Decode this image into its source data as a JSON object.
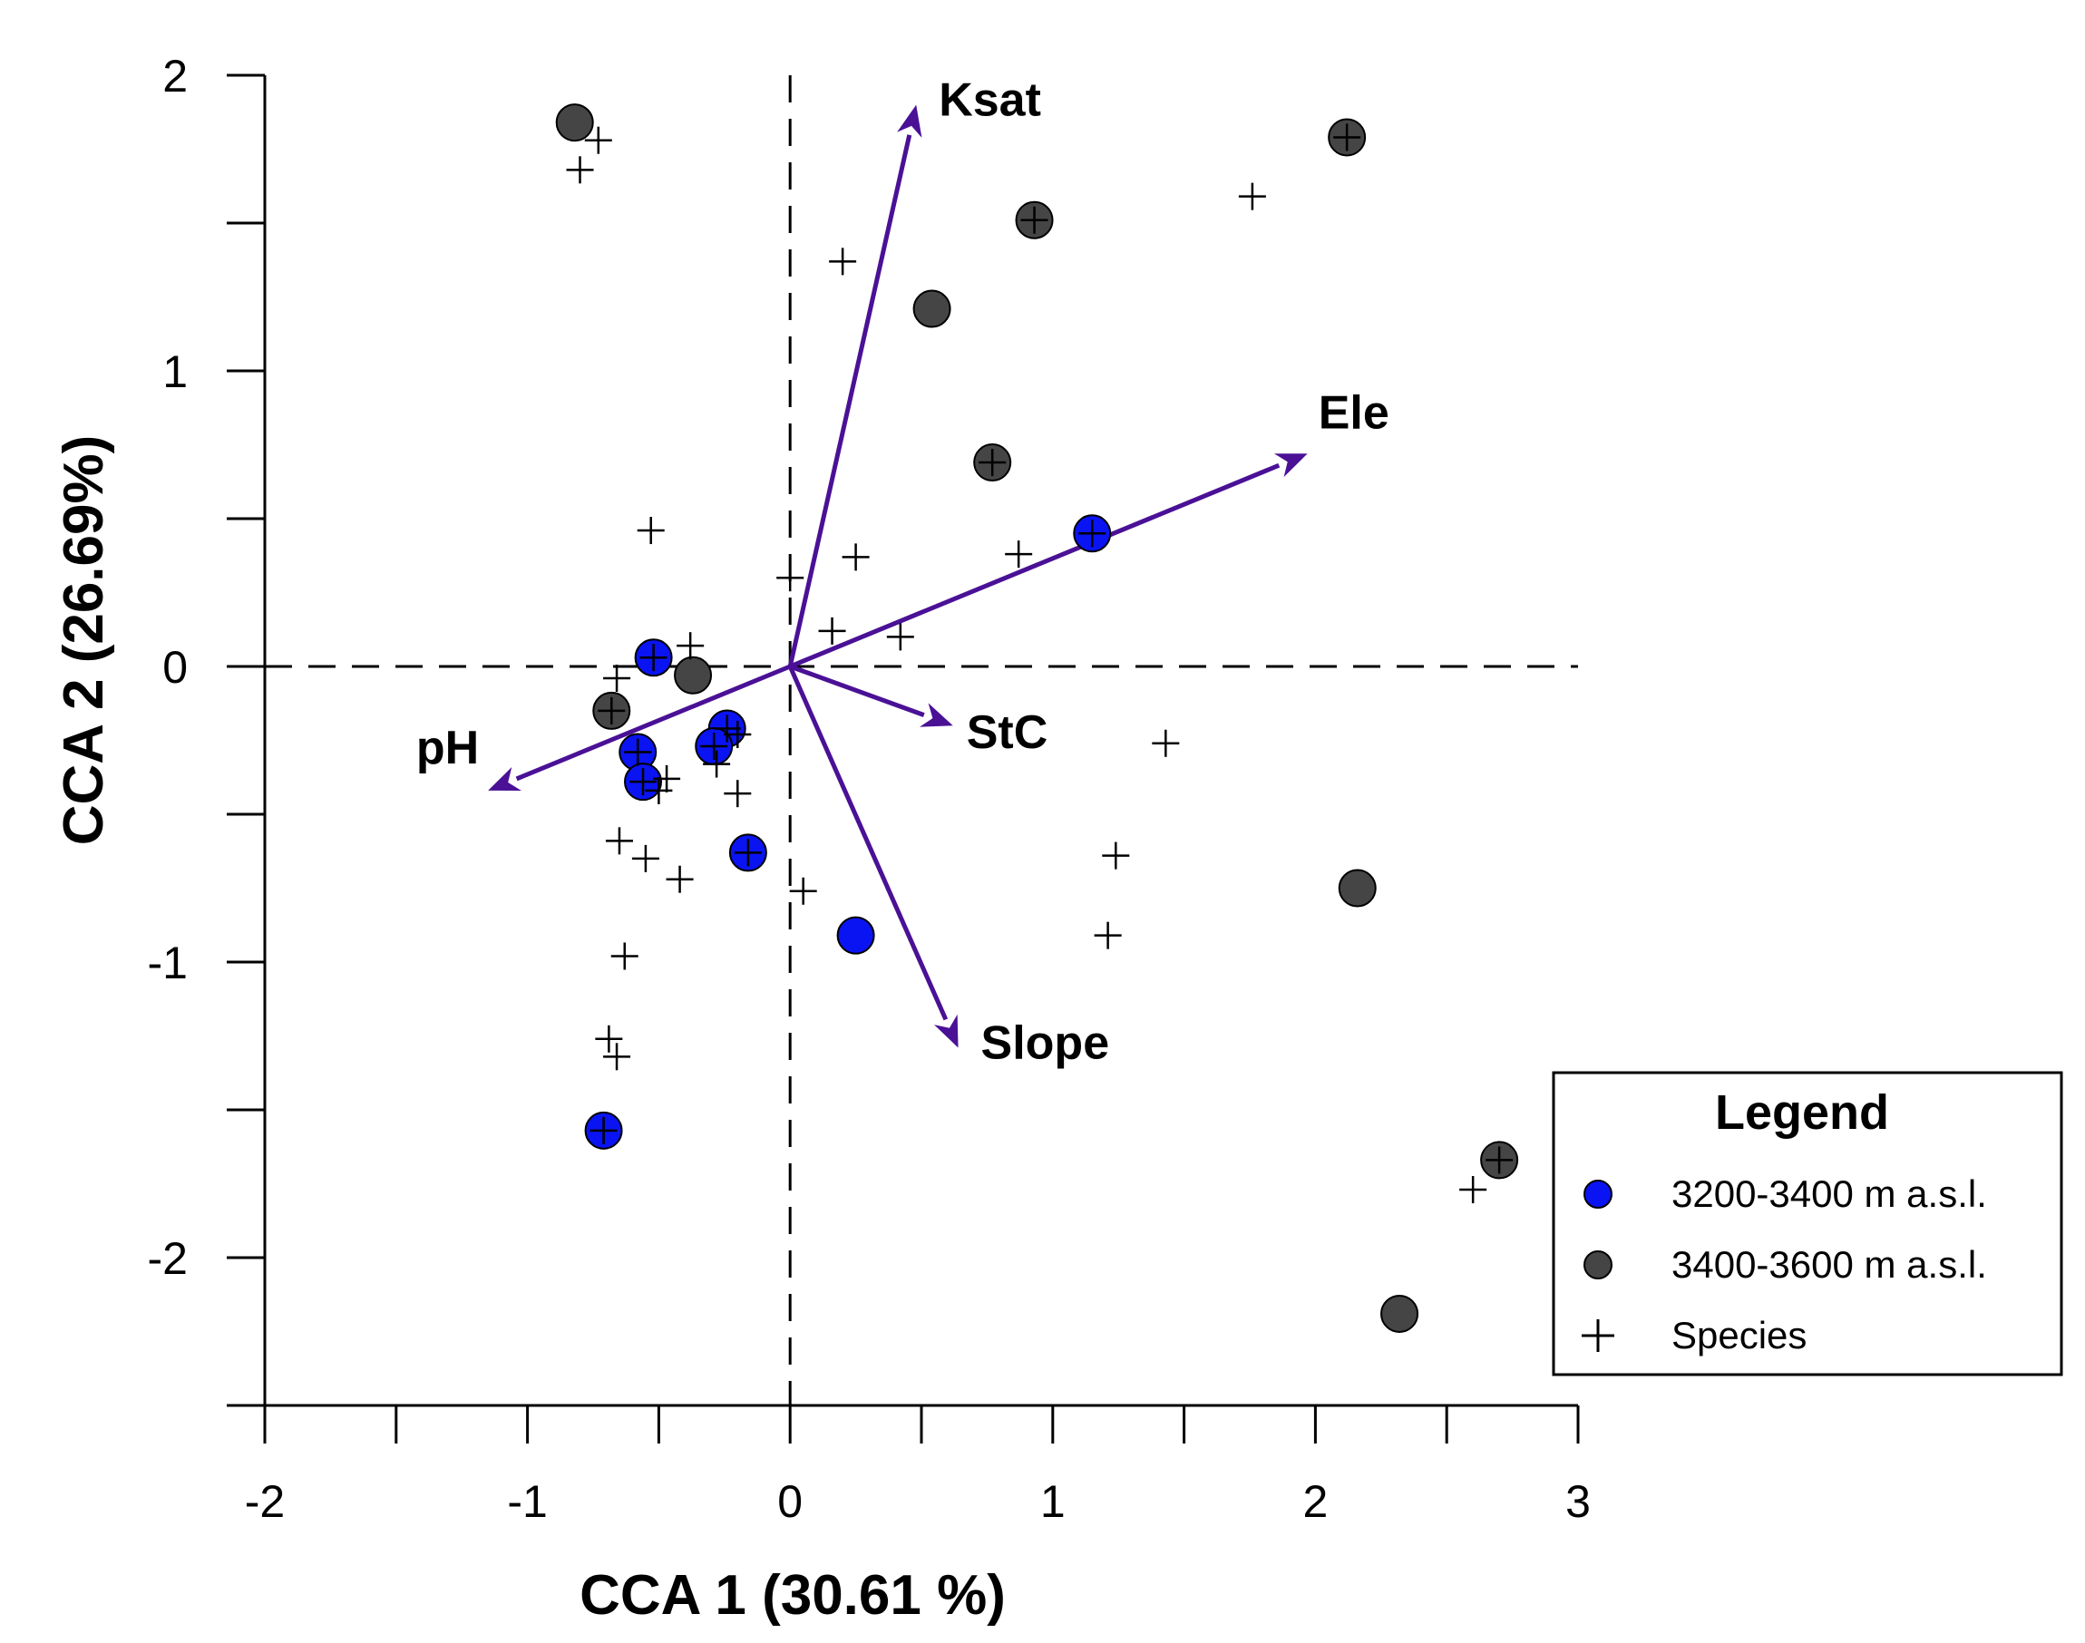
{
  "chart_data": {
    "type": "scatter",
    "title": "",
    "xlabel": "CCA 1 (30.61 %)",
    "ylabel": "CCA 2 (26.69%)",
    "xlim": [
      -2,
      3
    ],
    "ylim": [
      -2.5,
      2
    ],
    "x_ticks": [
      "-2",
      "-1",
      "0",
      "1",
      "2",
      "3"
    ],
    "y_ticks": [
      "2",
      "1",
      "0",
      "-1",
      "-2"
    ],
    "x_tick_values": [
      -2,
      -1,
      0,
      1,
      2,
      3
    ],
    "y_tick_values": [
      2,
      1,
      0,
      -1,
      -2
    ],
    "x_minor_ticks": [
      -1.5,
      -0.5,
      0.5,
      1.5,
      2.5
    ],
    "y_minor_ticks": [
      1.5,
      0.5,
      -0.5,
      -1.5,
      -2.5
    ],
    "reference_lines": {
      "x": 0,
      "y": 0,
      "style": "dashed"
    },
    "colors": {
      "site_low": "#0a14f2",
      "site_high": "#454545",
      "species": "#000000",
      "arrows": "#4a1196"
    },
    "series": [
      {
        "name": "3200-3400 m a.s.l.",
        "marker": "circle",
        "points": [
          {
            "x": 1.15,
            "y": 0.45
          },
          {
            "x": -0.52,
            "y": 0.03
          },
          {
            "x": -0.24,
            "y": -0.21
          },
          {
            "x": -0.29,
            "y": -0.27
          },
          {
            "x": -0.58,
            "y": -0.29
          },
          {
            "x": -0.56,
            "y": -0.39
          },
          {
            "x": -0.16,
            "y": -0.63
          },
          {
            "x": 0.25,
            "y": -0.91
          },
          {
            "x": -0.71,
            "y": -1.57
          }
        ]
      },
      {
        "name": "3400-3600 m a.s.l.",
        "marker": "circle",
        "points": [
          {
            "x": -0.82,
            "y": 1.84
          },
          {
            "x": 2.12,
            "y": 1.79
          },
          {
            "x": 0.93,
            "y": 1.51
          },
          {
            "x": 0.54,
            "y": 1.21
          },
          {
            "x": 0.77,
            "y": 0.69
          },
          {
            "x": -0.37,
            "y": -0.03
          },
          {
            "x": -0.68,
            "y": -0.15
          },
          {
            "x": 2.16,
            "y": -0.75
          },
          {
            "x": 2.7,
            "y": -1.67
          },
          {
            "x": 2.32,
            "y": -2.19
          }
        ]
      },
      {
        "name": "Species",
        "marker": "plus",
        "points": [
          {
            "x": -0.73,
            "y": 1.78
          },
          {
            "x": -0.8,
            "y": 1.68
          },
          {
            "x": 2.12,
            "y": 1.79
          },
          {
            "x": 1.76,
            "y": 1.59
          },
          {
            "x": 0.93,
            "y": 1.51
          },
          {
            "x": 0.2,
            "y": 1.37
          },
          {
            "x": 0.77,
            "y": 0.69
          },
          {
            "x": -0.53,
            "y": 0.46
          },
          {
            "x": 0.87,
            "y": 0.38
          },
          {
            "x": 0.25,
            "y": 0.37
          },
          {
            "x": 1.15,
            "y": 0.45
          },
          {
            "x": 0.0,
            "y": 0.3
          },
          {
            "x": 0.16,
            "y": 0.12
          },
          {
            "x": 0.42,
            "y": 0.1
          },
          {
            "x": -0.38,
            "y": 0.07
          },
          {
            "x": -0.52,
            "y": 0.03
          },
          {
            "x": -0.66,
            "y": -0.04
          },
          {
            "x": -0.68,
            "y": -0.15
          },
          {
            "x": -0.24,
            "y": -0.21
          },
          {
            "x": -0.2,
            "y": -0.23
          },
          {
            "x": -0.29,
            "y": -0.27
          },
          {
            "x": 1.43,
            "y": -0.26
          },
          {
            "x": -0.58,
            "y": -0.29
          },
          {
            "x": -0.28,
            "y": -0.33
          },
          {
            "x": -0.56,
            "y": -0.39
          },
          {
            "x": -0.47,
            "y": -0.38
          },
          {
            "x": -0.5,
            "y": -0.42
          },
          {
            "x": -0.2,
            "y": -0.43
          },
          {
            "x": -0.65,
            "y": -0.59
          },
          {
            "x": -0.55,
            "y": -0.65
          },
          {
            "x": -0.16,
            "y": -0.63
          },
          {
            "x": 1.24,
            "y": -0.64
          },
          {
            "x": -0.42,
            "y": -0.72
          },
          {
            "x": 0.05,
            "y": -0.76
          },
          {
            "x": 1.21,
            "y": -0.91
          },
          {
            "x": -0.63,
            "y": -0.98
          },
          {
            "x": -0.69,
            "y": -1.26
          },
          {
            "x": -0.66,
            "y": -1.32
          },
          {
            "x": -0.71,
            "y": -1.57
          },
          {
            "x": 2.6,
            "y": -1.77
          },
          {
            "x": 2.7,
            "y": -1.67
          }
        ]
      }
    ],
    "arrows": [
      {
        "label": "Ksat",
        "x": 0.48,
        "y": 1.9
      },
      {
        "label": "Ele",
        "x": 1.97,
        "y": 0.72
      },
      {
        "label": "StC",
        "x": 0.62,
        "y": -0.2
      },
      {
        "label": "Slope",
        "x": 0.64,
        "y": -1.29
      },
      {
        "label": "pH",
        "x": -1.15,
        "y": -0.42
      }
    ],
    "legend": {
      "title": "Legend",
      "position": "bottom-right",
      "items": [
        "3200-3400 m a.s.l.",
        "3400-3600 m a.s.l.",
        "Species"
      ]
    }
  }
}
